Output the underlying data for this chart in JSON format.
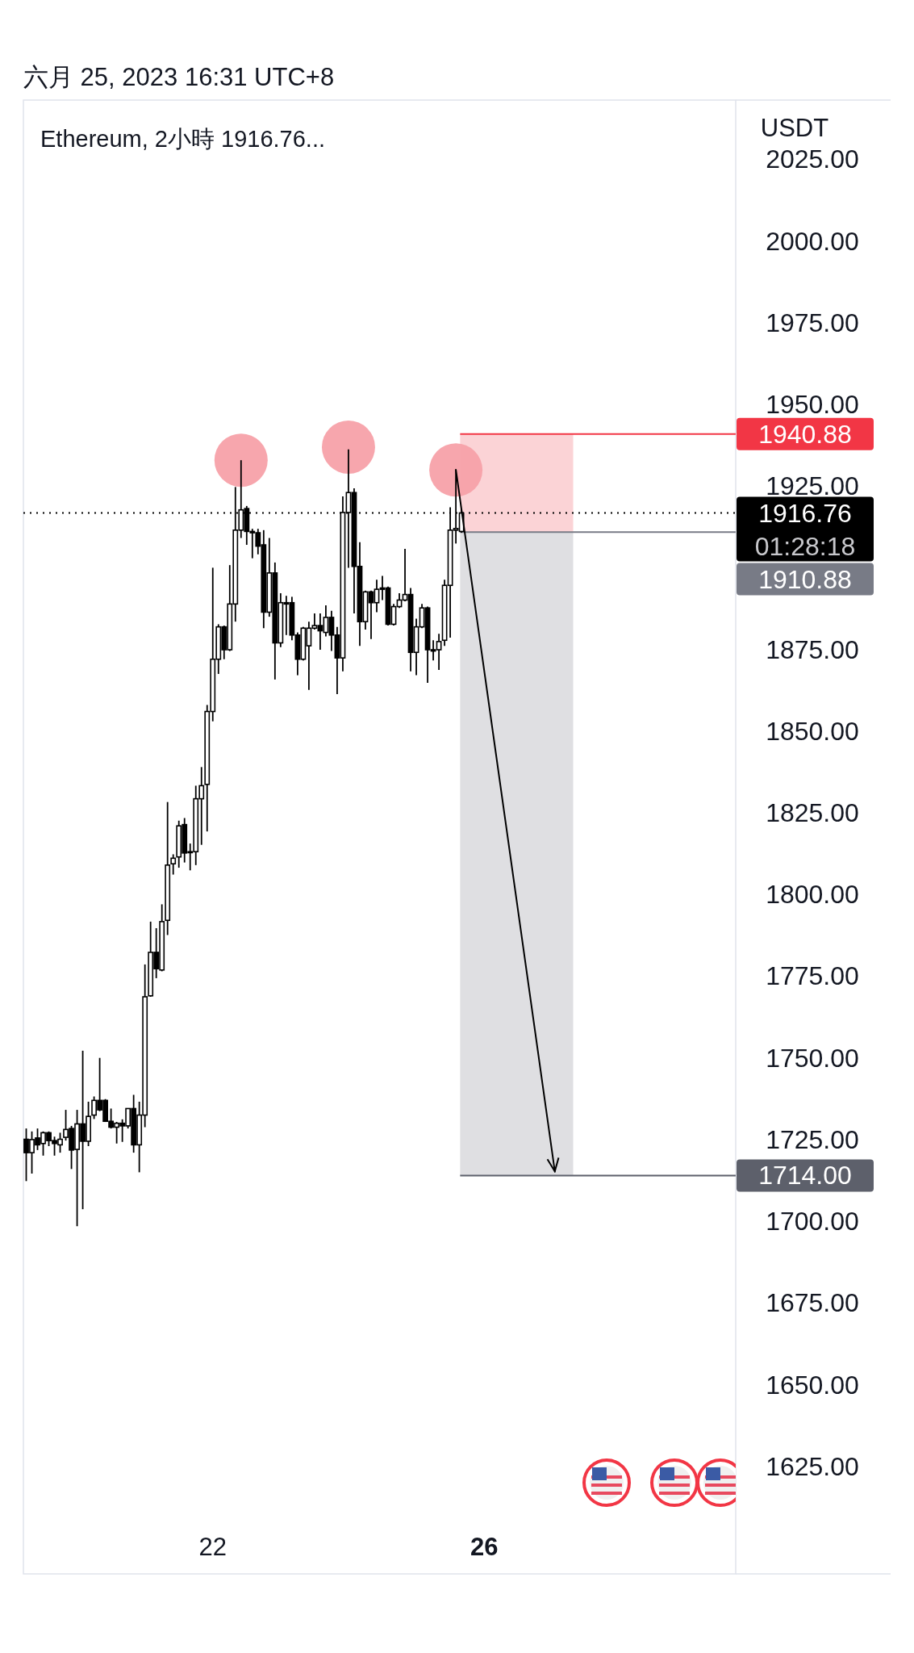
{
  "chart_data": {
    "type": "candlestick",
    "title": "Ethereum, 2小時  1916.76...",
    "subtitle": "六月 25, 2023 16:31 UTC+8",
    "ylabel": "USDT",
    "x": [
      "2023-06-19T06:00",
      "2023-06-19T08:00",
      "2023-06-19T10:00",
      "2023-06-19T12:00",
      "2023-06-19T14:00",
      "2023-06-19T16:00",
      "2023-06-19T18:00",
      "2023-06-19T20:00",
      "2023-06-19T22:00",
      "2023-06-20T00:00",
      "2023-06-20T02:00",
      "2023-06-20T04:00",
      "2023-06-20T06:00",
      "2023-06-20T08:00",
      "2023-06-20T10:00",
      "2023-06-20T12:00",
      "2023-06-20T14:00",
      "2023-06-20T16:00",
      "2023-06-20T18:00",
      "2023-06-20T20:00",
      "2023-06-20T22:00",
      "2023-06-21T00:00",
      "2023-06-21T02:00",
      "2023-06-21T04:00",
      "2023-06-21T06:00",
      "2023-06-21T08:00",
      "2023-06-21T10:00",
      "2023-06-21T12:00",
      "2023-06-21T14:00",
      "2023-06-21T16:00",
      "2023-06-21T18:00",
      "2023-06-21T20:00",
      "2023-06-21T22:00",
      "2023-06-22T00:00",
      "2023-06-22T02:00",
      "2023-06-22T04:00",
      "2023-06-22T06:00",
      "2023-06-22T08:00",
      "2023-06-22T10:00",
      "2023-06-22T12:00",
      "2023-06-22T14:00",
      "2023-06-22T16:00",
      "2023-06-22T18:00",
      "2023-06-22T20:00",
      "2023-06-22T22:00",
      "2023-06-23T00:00",
      "2023-06-23T02:00",
      "2023-06-23T04:00",
      "2023-06-23T06:00",
      "2023-06-23T08:00",
      "2023-06-23T10:00",
      "2023-06-23T12:00",
      "2023-06-23T14:00",
      "2023-06-23T16:00",
      "2023-06-23T18:00",
      "2023-06-23T20:00",
      "2023-06-23T22:00",
      "2023-06-24T00:00",
      "2023-06-24T02:00",
      "2023-06-24T04:00",
      "2023-06-24T06:00",
      "2023-06-24T08:00",
      "2023-06-24T10:00",
      "2023-06-24T12:00",
      "2023-06-24T14:00",
      "2023-06-24T16:00",
      "2023-06-24T18:00",
      "2023-06-24T20:00",
      "2023-06-24T22:00",
      "2023-06-25T00:00",
      "2023-06-25T02:00",
      "2023-06-25T04:00",
      "2023-06-25T06:00",
      "2023-06-25T08:00",
      "2023-06-25T10:00",
      "2023-06-25T12:00",
      "2023-06-25T14:00",
      "2023-06-25T16:00"
    ],
    "ohlc": [
      [
        1725.1,
        1728.4,
        1712.3,
        1721.0
      ],
      [
        1721.0,
        1727.5,
        1714.6,
        1725.0
      ],
      [
        1725.5,
        1728.4,
        1721.8,
        1723.4
      ],
      [
        1723.8,
        1727.5,
        1720.1,
        1727.1
      ],
      [
        1727.1,
        1727.5,
        1723.0,
        1724.7
      ],
      [
        1724.7,
        1725.9,
        1720.1,
        1723.8
      ],
      [
        1723.4,
        1727.1,
        1721.0,
        1725.1
      ],
      [
        1725.7,
        1734.1,
        1724.7,
        1728.1
      ],
      [
        1728.4,
        1729.2,
        1716.0,
        1721.8
      ],
      [
        1722.0,
        1734.1,
        1698.5,
        1729.8
      ],
      [
        1729.8,
        1752.2,
        1703.7,
        1724.5
      ],
      [
        1724.5,
        1736.6,
        1723.0,
        1732.1
      ],
      [
        1732.5,
        1738.2,
        1731.3,
        1737.0
      ],
      [
        1737.0,
        1750.0,
        1733.7,
        1734.1
      ],
      [
        1737.0,
        1737.4,
        1730.4,
        1730.6
      ],
      [
        1730.6,
        1734.5,
        1728.4,
        1728.8
      ],
      [
        1728.8,
        1730.4,
        1723.8,
        1730.0
      ],
      [
        1730.0,
        1731.2,
        1724.3,
        1729.2
      ],
      [
        1729.2,
        1734.5,
        1728.4,
        1734.5
      ],
      [
        1734.5,
        1738.7,
        1721.0,
        1723.4
      ],
      [
        1723.4,
        1736.6,
        1715.0,
        1732.5
      ],
      [
        1732.5,
        1778.6,
        1728.8,
        1768.7
      ],
      [
        1769.0,
        1791.7,
        1768.7,
        1782.3
      ],
      [
        1782.3,
        1789.7,
        1774.4,
        1777.3
      ],
      [
        1776.9,
        1797.0,
        1776.5,
        1791.7
      ],
      [
        1792.1,
        1828.3,
        1787.6,
        1809.0
      ],
      [
        1809.4,
        1812.3,
        1806.1,
        1811.1
      ],
      [
        1811.5,
        1822.6,
        1808.2,
        1821.0
      ],
      [
        1821.4,
        1823.4,
        1809.8,
        1812.7
      ],
      [
        1813.1,
        1815.6,
        1807.4,
        1812.9
      ],
      [
        1813.1,
        1833.3,
        1809.0,
        1829.3
      ],
      [
        1829.3,
        1839.0,
        1815.2,
        1833.3
      ],
      [
        1833.7,
        1858.0,
        1819.3,
        1856.0
      ],
      [
        1856.0,
        1900.0,
        1853.0,
        1872.0
      ],
      [
        1872.0,
        1882.7,
        1867.5,
        1881.9
      ],
      [
        1881.9,
        1882.3,
        1872.0,
        1874.9
      ],
      [
        1874.9,
        1900.8,
        1874.5,
        1888.9
      ],
      [
        1888.9,
        1924.7,
        1883.5,
        1911.5
      ],
      [
        1911.5,
        1932.9,
        1909.1,
        1917.7
      ],
      [
        1918.1,
        1918.9,
        1907.0,
        1911.1
      ],
      [
        1911.1,
        1911.9,
        1902.9,
        1910.7
      ],
      [
        1910.7,
        1911.9,
        1904.1,
        1906.6
      ],
      [
        1907.0,
        1911.5,
        1881.5,
        1886.4
      ],
      [
        1886.4,
        1909.1,
        1885.0,
        1898.4
      ],
      [
        1898.4,
        1901.6,
        1865.8,
        1877.0
      ],
      [
        1877.0,
        1892.2,
        1875.7,
        1889.3
      ],
      [
        1889.3,
        1891.4,
        1879.4,
        1888.9
      ],
      [
        1889.3,
        1891.1,
        1877.8,
        1879.4
      ],
      [
        1879.4,
        1880.2,
        1867.1,
        1872.0
      ],
      [
        1872.0,
        1881.9,
        1871.6,
        1881.5
      ],
      [
        1876.1,
        1883.5,
        1862.6,
        1881.5
      ],
      [
        1881.5,
        1886.0,
        1881.1,
        1882.3
      ],
      [
        1882.3,
        1886.0,
        1874.9,
        1880.7
      ],
      [
        1880.2,
        1888.5,
        1879.0,
        1884.8
      ],
      [
        1884.8,
        1886.8,
        1874.5,
        1879.4
      ],
      [
        1879.4,
        1881.9,
        1861.3,
        1872.4
      ],
      [
        1872.4,
        1921.8,
        1868.3,
        1916.9
      ],
      [
        1916.9,
        1936.2,
        1900.0,
        1923.0
      ],
      [
        1923.0,
        1924.3,
        1886.0,
        1900.4
      ],
      [
        1900.4,
        1907.8,
        1876.1,
        1883.5
      ],
      [
        1883.5,
        1893.0,
        1881.1,
        1892.6
      ],
      [
        1892.6,
        1893.0,
        1878.2,
        1889.3
      ],
      [
        1889.3,
        1896.3,
        1886.4,
        1893.4
      ],
      [
        1893.8,
        1897.5,
        1890.1,
        1893.4
      ],
      [
        1893.8,
        1894.2,
        1882.3,
        1882.7
      ],
      [
        1882.7,
        1888.9,
        1882.3,
        1888.1
      ],
      [
        1888.1,
        1892.2,
        1887.7,
        1890.1
      ],
      [
        1890.1,
        1905.8,
        1889.7,
        1891.8
      ],
      [
        1891.8,
        1893.8,
        1868.3,
        1874.1
      ],
      [
        1874.1,
        1884.4,
        1867.1,
        1881.9
      ],
      [
        1881.9,
        1888.9,
        1881.5,
        1887.7
      ],
      [
        1887.7,
        1888.1,
        1864.8,
        1874.9
      ],
      [
        1874.9,
        1877.8,
        1871.6,
        1874.5
      ],
      [
        1874.9,
        1879.8,
        1868.7,
        1877.4
      ],
      [
        1877.8,
        1896.3,
        1876.1,
        1894.6
      ],
      [
        1894.6,
        1918.5,
        1878.6,
        1911.5
      ],
      [
        1911.5,
        1930.0,
        1907.4,
        1912.0
      ],
      [
        1911.1,
        1918.1,
        1910.7,
        1916.76
      ]
    ],
    "series": [
      {
        "type": "bar",
        "color": "#fbd3d6",
        "x": [
          "2023-06-26T11:30"
        ],
        "base": [
          1910.88
        ],
        "values": [
          30.0
        ]
      },
      {
        "type": "bar",
        "color": "#dfdfe2",
        "x": [
          "2023-06-26T11:30"
        ],
        "base": [
          1714.0
        ],
        "values": [
          196.9
        ]
      },
      {
        "type": "scatter",
        "color": "#f7a1a9",
        "marker": "circle",
        "x": [
          "2023-06-22T10:00",
          "2023-06-24T00:00",
          "2023-06-25T14:00"
        ],
        "values": [
          1932.9,
          1936.9,
          1929.9
        ]
      },
      {
        "type": "line",
        "color": "#000000",
        "x": [
          "2023-06-25T14:00",
          "2023-06-27T01:00"
        ],
        "values": [
          1930.0,
          1715.3
        ]
      }
    ],
    "ref_lines": [
      {
        "axis": "y",
        "value": 1916.76,
        "label": "1916.76",
        "color": "#000000",
        "line_style": "dotted"
      },
      {
        "axis": "y",
        "value": 1940.88,
        "label": "1940.88",
        "color": "#f23645",
        "line_style": "solid"
      },
      {
        "axis": "y",
        "value": 1910.88,
        "label": "1910.88",
        "color": "#787b86",
        "line_style": "solid"
      },
      {
        "axis": "y",
        "value": 1714.0,
        "label": "1714.00",
        "color": "#5d606b",
        "line_style": "solid"
      }
    ],
    "annotations": [
      "01:28:18"
    ],
    "xlim": [
      "2023-06-19T05:00",
      "2023-06-29T17:00"
    ],
    "xticks": [
      {
        "value": "2023-06-22",
        "label": "22"
      },
      {
        "value": "2023-06-26",
        "label": "26"
      }
    ],
    "ylim": [
      1592.1,
      2043.1
    ],
    "yticks": [
      {
        "value": 1625,
        "label": "1625.00"
      },
      {
        "value": 1650,
        "label": "1650.00"
      },
      {
        "value": 1675,
        "label": "1675.00"
      },
      {
        "value": 1700,
        "label": "1700.00"
      },
      {
        "value": 1725,
        "label": "1725.00"
      },
      {
        "value": 1750,
        "label": "1750.00"
      },
      {
        "value": 1775,
        "label": "1775.00"
      },
      {
        "value": 1800,
        "label": "1800.00"
      },
      {
        "value": 1825,
        "label": "1825.00"
      },
      {
        "value": 1850,
        "label": "1850.00"
      },
      {
        "value": 1875,
        "label": "1875.00"
      },
      {
        "value": 1925,
        "label": "1925.00"
      },
      {
        "value": 1950,
        "label": "1950.00"
      },
      {
        "value": 1975,
        "label": "1975.00"
      },
      {
        "value": 2000,
        "label": "2000.00"
      },
      {
        "value": 2025,
        "label": "2025.00"
      }
    ]
  }
}
